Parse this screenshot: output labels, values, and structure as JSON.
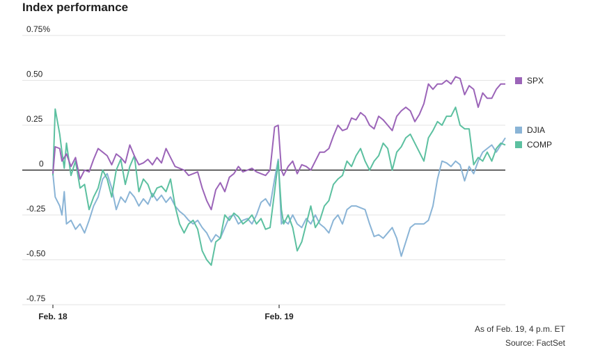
{
  "header": {
    "title": "Index performance"
  },
  "footer": {
    "as_of": "As of Feb. 19, 4 p.m. ET",
    "source": "Source: FactSet"
  },
  "chart_data": {
    "type": "line",
    "title": "Index performance",
    "xlabel": "",
    "ylabel": "",
    "ylim": [
      -0.75,
      0.75
    ],
    "xlim": [
      0,
      100
    ],
    "y_ticks": [
      {
        "value": 0.75,
        "label": "0.75%"
      },
      {
        "value": 0.5,
        "label": "0.50"
      },
      {
        "value": 0.25,
        "label": "0.25"
      },
      {
        "value": 0,
        "label": "0"
      },
      {
        "value": -0.25,
        "label": "-0.25"
      },
      {
        "value": -0.5,
        "label": "-0.50"
      },
      {
        "value": -0.75,
        "label": "-0.75"
      }
    ],
    "x_ticks": [
      {
        "value": 0,
        "label": "Feb. 18"
      },
      {
        "value": 50,
        "label": "Feb. 19"
      }
    ],
    "grid": true,
    "legend_position": "right",
    "series": [
      {
        "name": "SPX",
        "color": "#9b64b8",
        "points": [
          [
            0,
            -0.02
          ],
          [
            0.5,
            0.13
          ],
          [
            1.5,
            0.12
          ],
          [
            2,
            0.05
          ],
          [
            3,
            0.09
          ],
          [
            4,
            0.02
          ],
          [
            5,
            0.07
          ],
          [
            6,
            -0.05
          ],
          [
            7,
            0.0
          ],
          [
            8,
            -0.01
          ],
          [
            9,
            0.06
          ],
          [
            10,
            0.12
          ],
          [
            11,
            0.1
          ],
          [
            12,
            0.08
          ],
          [
            13,
            0.03
          ],
          [
            14,
            0.09
          ],
          [
            15,
            0.07
          ],
          [
            16,
            0.04
          ],
          [
            17,
            0.14
          ],
          [
            18,
            0.08
          ],
          [
            19,
            0.03
          ],
          [
            20,
            0.04
          ],
          [
            21,
            0.06
          ],
          [
            22,
            0.03
          ],
          [
            23,
            0.07
          ],
          [
            24,
            0.04
          ],
          [
            25,
            0.12
          ],
          [
            26,
            0.07
          ],
          [
            27,
            0.02
          ],
          [
            28,
            0.01
          ],
          [
            29,
            0.0
          ],
          [
            30,
            -0.03
          ],
          [
            31,
            -0.02
          ],
          [
            32,
            -0.01
          ],
          [
            33,
            -0.1
          ],
          [
            34,
            -0.17
          ],
          [
            35,
            -0.22
          ],
          [
            36,
            -0.11
          ],
          [
            37,
            -0.07
          ],
          [
            38,
            -0.12
          ],
          [
            39,
            -0.04
          ],
          [
            40,
            -0.02
          ],
          [
            41,
            0.02
          ],
          [
            42,
            -0.01
          ],
          [
            43,
            0.0
          ],
          [
            44,
            0.01
          ],
          [
            45,
            -0.01
          ],
          [
            46,
            -0.02
          ],
          [
            47,
            -0.03
          ],
          [
            48,
            0.0
          ],
          [
            49,
            0.24
          ],
          [
            49.8,
            0.25
          ],
          [
            50.5,
            0.0
          ],
          [
            51,
            -0.03
          ],
          [
            52,
            0.02
          ],
          [
            53,
            0.05
          ],
          [
            54,
            -0.02
          ],
          [
            55,
            0.03
          ],
          [
            56,
            0.02
          ],
          [
            57,
            0.0
          ],
          [
            58,
            0.05
          ],
          [
            59,
            0.1
          ],
          [
            60,
            0.1
          ],
          [
            61,
            0.12
          ],
          [
            62,
            0.19
          ],
          [
            63,
            0.25
          ],
          [
            64,
            0.22
          ],
          [
            65,
            0.23
          ],
          [
            66,
            0.29
          ],
          [
            67,
            0.28
          ],
          [
            68,
            0.32
          ],
          [
            69,
            0.3
          ],
          [
            70,
            0.25
          ],
          [
            71,
            0.23
          ],
          [
            72,
            0.3
          ],
          [
            73,
            0.28
          ],
          [
            74,
            0.25
          ],
          [
            75,
            0.22
          ],
          [
            76,
            0.3
          ],
          [
            77,
            0.33
          ],
          [
            78,
            0.35
          ],
          [
            79,
            0.33
          ],
          [
            80,
            0.27
          ],
          [
            81,
            0.31
          ],
          [
            82,
            0.37
          ],
          [
            83,
            0.48
          ],
          [
            84,
            0.45
          ],
          [
            85,
            0.48
          ],
          [
            86,
            0.48
          ],
          [
            87,
            0.5
          ],
          [
            88,
            0.48
          ],
          [
            89,
            0.52
          ],
          [
            90,
            0.51
          ],
          [
            91,
            0.42
          ],
          [
            92,
            0.47
          ],
          [
            93,
            0.45
          ],
          [
            94,
            0.35
          ],
          [
            95,
            0.43
          ],
          [
            96,
            0.4
          ],
          [
            97,
            0.4
          ],
          [
            98,
            0.45
          ],
          [
            99,
            0.48
          ],
          [
            100,
            0.48
          ]
        ]
      },
      {
        "name": "DJIA",
        "color": "#8ab4d6",
        "points": [
          [
            0,
            -0.02
          ],
          [
            0.5,
            -0.15
          ],
          [
            1.5,
            -0.2
          ],
          [
            2,
            -0.25
          ],
          [
            2.5,
            -0.12
          ],
          [
            3,
            -0.3
          ],
          [
            4,
            -0.28
          ],
          [
            5,
            -0.33
          ],
          [
            6,
            -0.3
          ],
          [
            7,
            -0.35
          ],
          [
            8,
            -0.28
          ],
          [
            9,
            -0.2
          ],
          [
            10,
            -0.15
          ],
          [
            11,
            -0.05
          ],
          [
            12,
            -0.02
          ],
          [
            13,
            -0.1
          ],
          [
            14,
            -0.22
          ],
          [
            15,
            -0.15
          ],
          [
            16,
            -0.18
          ],
          [
            17,
            -0.12
          ],
          [
            18,
            -0.15
          ],
          [
            19,
            -0.2
          ],
          [
            20,
            -0.16
          ],
          [
            21,
            -0.19
          ],
          [
            22,
            -0.13
          ],
          [
            23,
            -0.17
          ],
          [
            24,
            -0.14
          ],
          [
            25,
            -0.18
          ],
          [
            26,
            -0.15
          ],
          [
            27,
            -0.2
          ],
          [
            28,
            -0.23
          ],
          [
            29,
            -0.25
          ],
          [
            30,
            -0.28
          ],
          [
            31,
            -0.3
          ],
          [
            32,
            -0.28
          ],
          [
            33,
            -0.32
          ],
          [
            34,
            -0.35
          ],
          [
            35,
            -0.4
          ],
          [
            36,
            -0.36
          ],
          [
            37,
            -0.38
          ],
          [
            38,
            -0.32
          ],
          [
            39,
            -0.26
          ],
          [
            40,
            -0.25
          ],
          [
            41,
            -0.3
          ],
          [
            42,
            -0.28
          ],
          [
            43,
            -0.27
          ],
          [
            44,
            -0.3
          ],
          [
            45,
            -0.25
          ],
          [
            46,
            -0.18
          ],
          [
            47,
            -0.16
          ],
          [
            48,
            -0.2
          ],
          [
            49,
            -0.05
          ],
          [
            49.8,
            0.06
          ],
          [
            50.5,
            -0.3
          ],
          [
            51,
            -0.28
          ],
          [
            52,
            -0.3
          ],
          [
            53,
            -0.25
          ],
          [
            54,
            -0.3
          ],
          [
            55,
            -0.32
          ],
          [
            56,
            -0.27
          ],
          [
            57,
            -0.3
          ],
          [
            58,
            -0.25
          ],
          [
            59,
            -0.3
          ],
          [
            60,
            -0.32
          ],
          [
            61,
            -0.35
          ],
          [
            62,
            -0.28
          ],
          [
            63,
            -0.25
          ],
          [
            64,
            -0.3
          ],
          [
            65,
            -0.22
          ],
          [
            66,
            -0.2
          ],
          [
            67,
            -0.2
          ],
          [
            68,
            -0.21
          ],
          [
            69,
            -0.22
          ],
          [
            70,
            -0.3
          ],
          [
            71,
            -0.37
          ],
          [
            72,
            -0.36
          ],
          [
            73,
            -0.38
          ],
          [
            74,
            -0.35
          ],
          [
            75,
            -0.32
          ],
          [
            76,
            -0.38
          ],
          [
            77,
            -0.48
          ],
          [
            78,
            -0.4
          ],
          [
            79,
            -0.32
          ],
          [
            80,
            -0.3
          ],
          [
            81,
            -0.3
          ],
          [
            82,
            -0.3
          ],
          [
            83,
            -0.28
          ],
          [
            84,
            -0.2
          ],
          [
            85,
            -0.05
          ],
          [
            86,
            0.05
          ],
          [
            87,
            0.04
          ],
          [
            88,
            0.02
          ],
          [
            89,
            0.05
          ],
          [
            90,
            0.03
          ],
          [
            91,
            -0.06
          ],
          [
            92,
            0.02
          ],
          [
            93,
            -0.02
          ],
          [
            94,
            0.05
          ],
          [
            95,
            0.1
          ],
          [
            96,
            0.12
          ],
          [
            97,
            0.14
          ],
          [
            98,
            0.1
          ],
          [
            99,
            0.14
          ],
          [
            100,
            0.18
          ]
        ]
      },
      {
        "name": "COMP",
        "color": "#5cc0a0",
        "points": [
          [
            0,
            -0.03
          ],
          [
            0.5,
            0.34
          ],
          [
            1.5,
            0.2
          ],
          [
            2,
            0.1
          ],
          [
            2.5,
            0.01
          ],
          [
            3,
            0.15
          ],
          [
            4,
            -0.03
          ],
          [
            5,
            0.05
          ],
          [
            6,
            -0.1
          ],
          [
            7,
            -0.08
          ],
          [
            8,
            -0.22
          ],
          [
            9,
            -0.15
          ],
          [
            10,
            -0.1
          ],
          [
            11,
            0.0
          ],
          [
            12,
            -0.05
          ],
          [
            13,
            -0.15
          ],
          [
            14,
            0.0
          ],
          [
            15,
            0.06
          ],
          [
            16,
            -0.08
          ],
          [
            17,
            0.02
          ],
          [
            18,
            0.08
          ],
          [
            19,
            -0.12
          ],
          [
            20,
            -0.05
          ],
          [
            21,
            -0.08
          ],
          [
            22,
            -0.15
          ],
          [
            23,
            -0.1
          ],
          [
            24,
            -0.09
          ],
          [
            25,
            -0.12
          ],
          [
            26,
            -0.05
          ],
          [
            27,
            -0.2
          ],
          [
            28,
            -0.3
          ],
          [
            29,
            -0.35
          ],
          [
            30,
            -0.3
          ],
          [
            31,
            -0.28
          ],
          [
            32,
            -0.33
          ],
          [
            33,
            -0.45
          ],
          [
            34,
            -0.5
          ],
          [
            35,
            -0.53
          ],
          [
            36,
            -0.4
          ],
          [
            37,
            -0.38
          ],
          [
            38,
            -0.25
          ],
          [
            39,
            -0.28
          ],
          [
            40,
            -0.24
          ],
          [
            41,
            -0.26
          ],
          [
            42,
            -0.3
          ],
          [
            43,
            -0.28
          ],
          [
            44,
            -0.25
          ],
          [
            45,
            -0.3
          ],
          [
            46,
            -0.27
          ],
          [
            47,
            -0.33
          ],
          [
            48,
            -0.32
          ],
          [
            49,
            -0.12
          ],
          [
            49.8,
            0.05
          ],
          [
            50.5,
            -0.22
          ],
          [
            51,
            -0.3
          ],
          [
            52,
            -0.25
          ],
          [
            53,
            -0.32
          ],
          [
            54,
            -0.45
          ],
          [
            55,
            -0.4
          ],
          [
            56,
            -0.3
          ],
          [
            57,
            -0.2
          ],
          [
            58,
            -0.32
          ],
          [
            59,
            -0.28
          ],
          [
            60,
            -0.2
          ],
          [
            61,
            -0.17
          ],
          [
            62,
            -0.08
          ],
          [
            63,
            -0.05
          ],
          [
            64,
            -0.03
          ],
          [
            65,
            0.05
          ],
          [
            66,
            0.02
          ],
          [
            67,
            0.08
          ],
          [
            68,
            0.12
          ],
          [
            69,
            0.05
          ],
          [
            70,
            0.0
          ],
          [
            71,
            0.05
          ],
          [
            72,
            0.08
          ],
          [
            73,
            0.15
          ],
          [
            74,
            0.12
          ],
          [
            75,
            0.0
          ],
          [
            76,
            0.1
          ],
          [
            77,
            0.13
          ],
          [
            78,
            0.18
          ],
          [
            79,
            0.2
          ],
          [
            80,
            0.15
          ],
          [
            81,
            0.1
          ],
          [
            82,
            0.05
          ],
          [
            83,
            0.18
          ],
          [
            84,
            0.22
          ],
          [
            85,
            0.27
          ],
          [
            86,
            0.25
          ],
          [
            87,
            0.3
          ],
          [
            88,
            0.3
          ],
          [
            89,
            0.35
          ],
          [
            90,
            0.25
          ],
          [
            91,
            0.23
          ],
          [
            92,
            0.23
          ],
          [
            93,
            0.03
          ],
          [
            94,
            0.07
          ],
          [
            95,
            0.05
          ],
          [
            96,
            0.1
          ],
          [
            97,
            0.05
          ],
          [
            98,
            0.12
          ],
          [
            99,
            0.15
          ],
          [
            100,
            0.14
          ]
        ]
      }
    ],
    "legend": [
      {
        "name": "SPX",
        "color": "#9b64b8"
      },
      {
        "name": "DJIA",
        "color": "#8ab4d6"
      },
      {
        "name": "COMP",
        "color": "#5cc0a0"
      }
    ]
  }
}
